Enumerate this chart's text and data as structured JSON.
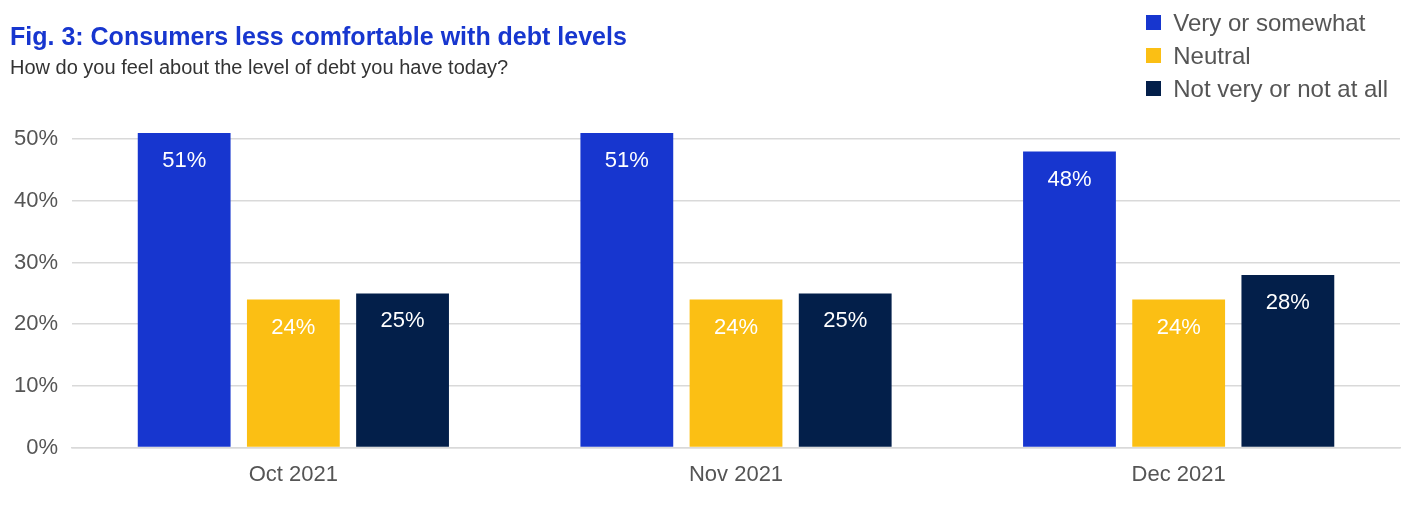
{
  "chart_data": {
    "type": "bar",
    "title": "Fig. 3: Consumers less comfortable with debt levels",
    "subtitle": "How do you feel about the level of debt you have today?",
    "categories": [
      "Oct 2021",
      "Nov 2021",
      "Dec 2021"
    ],
    "series": [
      {
        "name": "Very or somewhat",
        "color": "#1736cf",
        "values": [
          51,
          51,
          48
        ],
        "value_labels": [
          "51%",
          "51%",
          "48%"
        ]
      },
      {
        "name": "Neutral",
        "color": "#fbbf14",
        "values": [
          24,
          24,
          24
        ],
        "value_labels": [
          "24%",
          "24%",
          "24%"
        ]
      },
      {
        "name": "Not very or not at all",
        "color": "#031f4a",
        "values": [
          25,
          25,
          28
        ],
        "value_labels": [
          "25%",
          "25%",
          "28%"
        ]
      }
    ],
    "ylim": [
      0,
      51
    ],
    "yticks": [
      {
        "value": 0,
        "label": "0%"
      },
      {
        "value": 10,
        "label": "10%"
      },
      {
        "value": 20,
        "label": "20%"
      },
      {
        "value": 30,
        "label": "30%"
      },
      {
        "value": 40,
        "label": "40%"
      },
      {
        "value": 50,
        "label": "50%"
      }
    ],
    "grid": "y",
    "legend": "top right"
  }
}
